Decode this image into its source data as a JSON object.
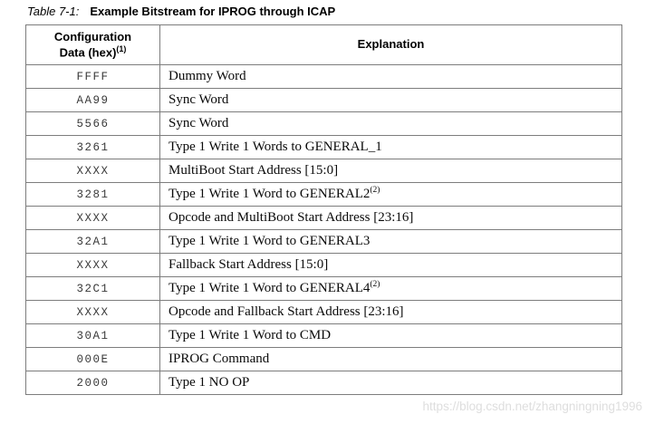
{
  "title": {
    "prefix": "Table 7-1:",
    "text": "Example Bitstream for IPROG through ICAP"
  },
  "table": {
    "header": {
      "col1_line1": "Configuration",
      "col1_line2": "Data (hex)",
      "col1_sup": "(1)",
      "col2": "Explanation"
    },
    "rows": [
      {
        "hex": "FFFF",
        "explanation": "Dummy Word"
      },
      {
        "hex": "AA99",
        "explanation": "Sync Word"
      },
      {
        "hex": "5566",
        "explanation": "Sync Word"
      },
      {
        "hex": "3261",
        "explanation": "Type 1 Write 1 Words to GENERAL_1"
      },
      {
        "hex": "XXXX",
        "explanation": "MultiBoot Start Address [15:0]"
      },
      {
        "hex": "3281",
        "explanation": "Type 1 Write 1 Word to GENERAL2",
        "sup": "(2)"
      },
      {
        "hex": "XXXX",
        "explanation": "Opcode and MultiBoot Start Address [23:16]"
      },
      {
        "hex": "32A1",
        "explanation": "Type 1 Write 1 Word to GENERAL3"
      },
      {
        "hex": "XXXX",
        "explanation": "Fallback Start Address [15:0]"
      },
      {
        "hex": "32C1",
        "explanation": "Type 1 Write 1 Word to GENERAL4",
        "sup": "(2)"
      },
      {
        "hex": "XXXX",
        "explanation": "Opcode and Fallback Start Address [23:16]"
      },
      {
        "hex": "30A1",
        "explanation": "Type 1 Write 1 Word to CMD"
      },
      {
        "hex": "000E",
        "explanation": "IPROG Command"
      },
      {
        "hex": "2000",
        "explanation": "Type 1 NO OP"
      }
    ]
  },
  "watermark": {
    "text": "https://blog.csdn.net/zhangningning1996"
  },
  "colors": {
    "header_rule_red": "#be1428",
    "table_border_gray": "#7d7d7d",
    "watermark_gray": "#dedede"
  }
}
